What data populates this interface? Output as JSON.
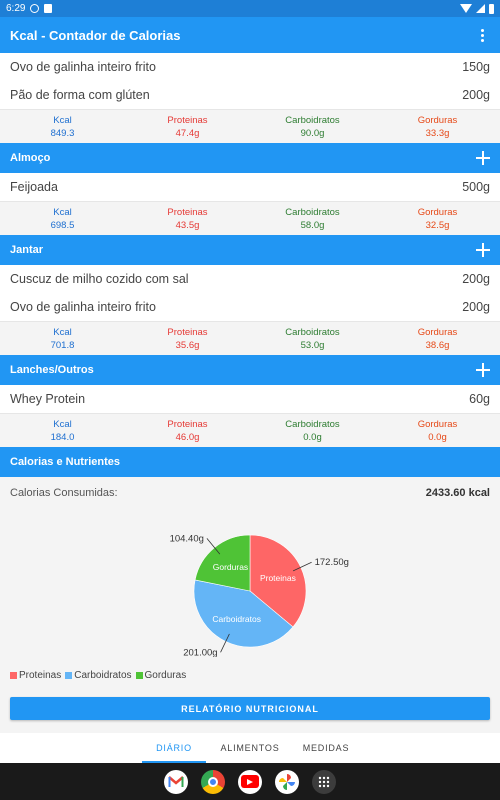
{
  "status": {
    "time": "6:29"
  },
  "appbar": {
    "title": "Kcal - Contador de Calorias"
  },
  "nutrient_labels": {
    "kcal": "Kcal",
    "prot": "Proteinas",
    "carb": "Carboidratos",
    "gord": "Gorduras"
  },
  "breakfast": {
    "items": [
      {
        "name": "Ovo de galinha inteiro frito",
        "qty": "150g"
      },
      {
        "name": "Pão de forma com glúten",
        "qty": "200g"
      }
    ],
    "totals": {
      "kcal": "849.3",
      "prot": "47.4g",
      "carb": "90.0g",
      "gord": "33.3g"
    }
  },
  "lunch": {
    "title": "Almoço",
    "items": [
      {
        "name": "Feijoada",
        "qty": "500g"
      }
    ],
    "totals": {
      "kcal": "698.5",
      "prot": "43.5g",
      "carb": "58.0g",
      "gord": "32.5g"
    }
  },
  "dinner": {
    "title": "Jantar",
    "items": [
      {
        "name": "Cuscuz de milho cozido com sal",
        "qty": "200g"
      },
      {
        "name": "Ovo de galinha inteiro frito",
        "qty": "200g"
      }
    ],
    "totals": {
      "kcal": "701.8",
      "prot": "35.6g",
      "carb": "53.0g",
      "gord": "38.6g"
    }
  },
  "snacks": {
    "title": "Lanches/Outros",
    "items": [
      {
        "name": "Whey Protein",
        "qty": "60g"
      }
    ],
    "totals": {
      "kcal": "184.0",
      "prot": "46.0g",
      "carb": "0.0g",
      "gord": "0.0g"
    }
  },
  "summary": {
    "title": "Calorias e Nutrientes",
    "consumed_label": "Calorias Consumidas:",
    "consumed_value": "2433.60 kcal",
    "report_button": "RELATÓRIO NUTRICIONAL"
  },
  "chart_data": {
    "type": "pie",
    "slices": [
      {
        "name": "Proteinas",
        "value": 172.5,
        "label": "172.50g",
        "color": "#fe6666"
      },
      {
        "name": "Carboidratos",
        "value": 201.0,
        "label": "201.00g",
        "color": "#64b5f6"
      },
      {
        "name": "Gorduras",
        "value": 104.4,
        "label": "104.40g",
        "color": "#4fc336"
      }
    ],
    "legend": "bottom-left"
  },
  "tabs": [
    {
      "label": "DIÁRIO",
      "active": true
    },
    {
      "label": "ALIMENTOS",
      "active": false
    },
    {
      "label": "MEDIDAS",
      "active": false
    }
  ],
  "dock_apps": [
    "gmail-icon",
    "chrome-icon",
    "youtube-icon",
    "photos-icon",
    "app-drawer-icon"
  ]
}
